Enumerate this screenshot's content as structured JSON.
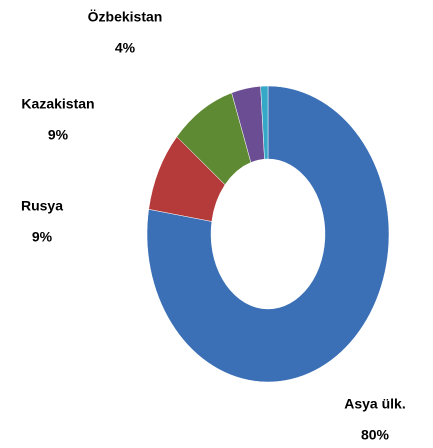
{
  "chart_data": {
    "type": "donut",
    "categories": [
      "Asya ülk.",
      "Rusya",
      "Kazakistan",
      "Özbekistan",
      null
    ],
    "values": [
      80,
      9,
      9,
      4,
      1
    ],
    "value_labels": [
      "80%",
      "9%",
      "9%",
      "4%",
      null
    ],
    "colors": [
      "#3b6fb6",
      "#b53b3a",
      "#5f8a34",
      "#6a4d93",
      "#35a8c8"
    ]
  }
}
